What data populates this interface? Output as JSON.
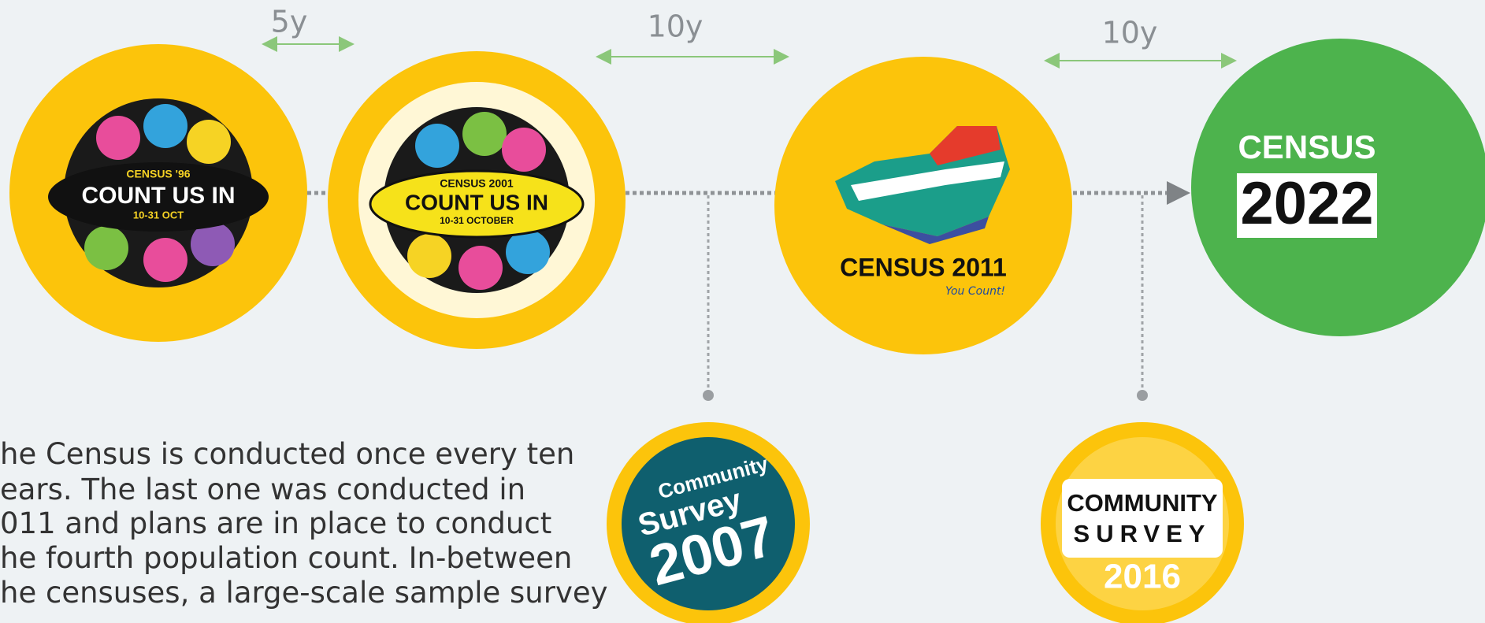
{
  "intervals": [
    "5y",
    "10y",
    "10y"
  ],
  "logos": [
    {
      "texts": [
        "CENSUS '96",
        "COUNT US IN",
        "10-31 OCT"
      ]
    },
    {
      "texts": [
        "CENSUS 2001",
        "COUNT US IN",
        "10-31 OCTOBER"
      ]
    },
    {
      "texts": [
        "CENSUS 2011",
        "You Count!"
      ]
    },
    {
      "texts": [
        "CENSUS",
        "2022"
      ]
    },
    {
      "texts": [
        "Community",
        "Survey",
        "2007"
      ]
    },
    {
      "texts": [
        "COMMUNITY",
        "SURVEY",
        "2016"
      ]
    }
  ],
  "description": [
    "he Census is conducted once every ten",
    "ears. The last one was conducted in",
    "011 and plans are in place to conduct",
    "he fourth population count. In-between",
    "he censuses, a large-scale sample survey"
  ]
}
